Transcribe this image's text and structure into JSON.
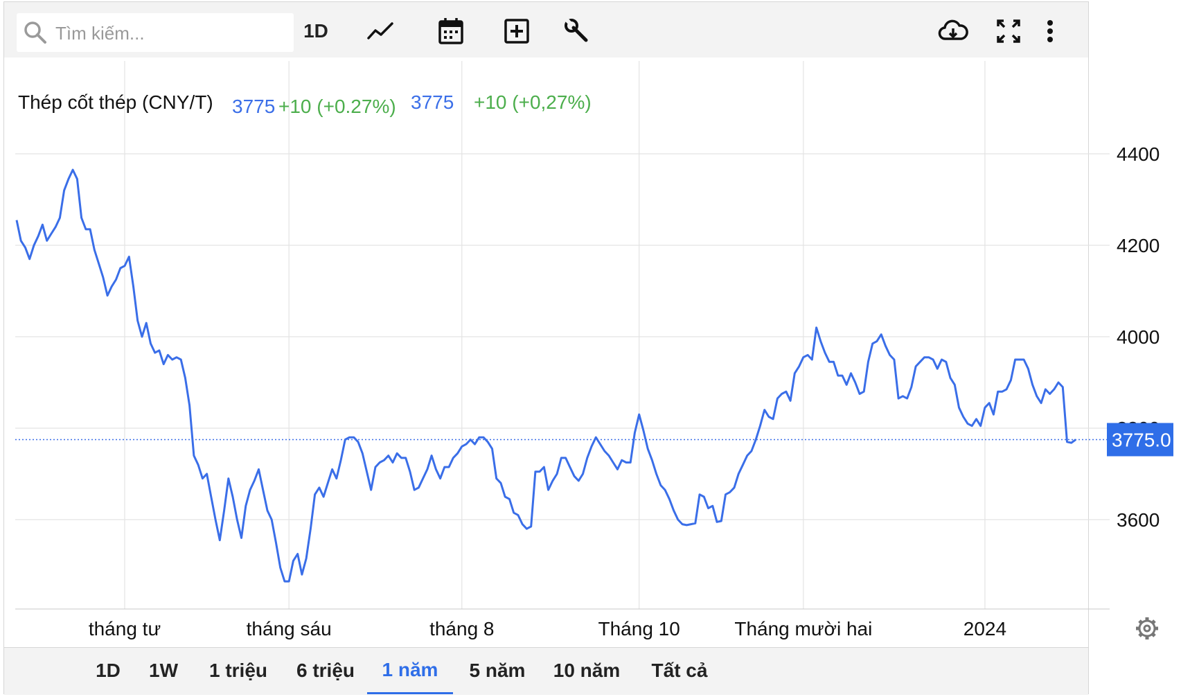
{
  "toolbar": {
    "search_placeholder": "Tìm kiếm...",
    "interval_label": "1D"
  },
  "legend": {
    "title": "Thép cốt thép (CNY/T)",
    "value": "3775",
    "change": "+10 (+0.27%)",
    "value2": "3775",
    "change2": "+10 (+0,27%)"
  },
  "price_tag": "3775.0",
  "ranges": [
    "1D",
    "1W",
    "1 triệu",
    "6 triệu",
    "1 năm",
    "5 năm",
    "10 năm",
    "Tất cả"
  ],
  "active_range": "1 năm",
  "colors": {
    "line": "#3a6ee8",
    "up": "#4cae4c",
    "tag_bg": "#2f6ee8",
    "grid": "#e3e3e3"
  },
  "icons": [
    "search-icon",
    "line-chart-icon",
    "calendar-icon",
    "add-icon",
    "wrench-icon",
    "cloud-download-icon",
    "fullscreen-icon",
    "more-icon",
    "gear-icon"
  ],
  "chart_data": {
    "type": "line",
    "title": "Thép cốt thép (CNY/T)",
    "xlabel": "",
    "ylabel": "",
    "ylim": [
      3400,
      4600
    ],
    "y_ticks": [
      3600,
      3800,
      4000,
      4200,
      4400
    ],
    "x_tick_labels": [
      "tháng tư",
      "tháng sáu",
      "tháng 8",
      "Tháng 10",
      "Tháng mười hai",
      "2024"
    ],
    "x_tick_index": [
      25,
      63,
      103,
      144,
      182,
      224
    ],
    "last_value": 3775,
    "grid": true,
    "series": [
      {
        "values": [
          4255,
          4210,
          4195,
          4170,
          4200,
          4220,
          4245,
          4210,
          4225,
          4240,
          4260,
          4320,
          4345,
          4365,
          4345,
          4260,
          4235,
          4235,
          4190,
          4160,
          4130,
          4090,
          4110,
          4125,
          4150,
          4155,
          4175,
          4110,
          4035,
          4000,
          4030,
          3985,
          3965,
          3970,
          3940,
          3960,
          3950,
          3955,
          3950,
          3910,
          3850,
          3740,
          3720,
          3690,
          3700,
          3650,
          3600,
          3555,
          3620,
          3690,
          3650,
          3600,
          3560,
          3630,
          3665,
          3685,
          3710,
          3665,
          3620,
          3600,
          3550,
          3495,
          3465,
          3465,
          3510,
          3525,
          3480,
          3515,
          3580,
          3655,
          3670,
          3650,
          3680,
          3710,
          3690,
          3730,
          3775,
          3780,
          3780,
          3770,
          3745,
          3705,
          3665,
          3715,
          3725,
          3730,
          3740,
          3725,
          3745,
          3735,
          3735,
          3705,
          3665,
          3670,
          3690,
          3710,
          3740,
          3710,
          3690,
          3715,
          3715,
          3735,
          3745,
          3760,
          3765,
          3775,
          3765,
          3780,
          3780,
          3770,
          3755,
          3690,
          3680,
          3650,
          3645,
          3615,
          3610,
          3590,
          3580,
          3585,
          3705,
          3705,
          3715,
          3665,
          3685,
          3700,
          3735,
          3735,
          3715,
          3695,
          3685,
          3700,
          3735,
          3760,
          3780,
          3765,
          3750,
          3740,
          3725,
          3710,
          3730,
          3725,
          3725,
          3790,
          3830,
          3795,
          3755,
          3730,
          3700,
          3675,
          3665,
          3645,
          3620,
          3600,
          3590,
          3588,
          3590,
          3592,
          3655,
          3650,
          3625,
          3630,
          3595,
          3597,
          3655,
          3660,
          3670,
          3700,
          3720,
          3740,
          3750,
          3775,
          3805,
          3840,
          3825,
          3820,
          3865,
          3875,
          3880,
          3860,
          3920,
          3935,
          3955,
          3960,
          3950,
          4020,
          3990,
          3965,
          3945,
          3945,
          3915,
          3915,
          3895,
          3920,
          3900,
          3875,
          3880,
          3945,
          3985,
          3990,
          4005,
          3980,
          3960,
          3950,
          3865,
          3870,
          3865,
          3890,
          3935,
          3945,
          3955,
          3955,
          3950,
          3930,
          3950,
          3945,
          3910,
          3895,
          3845,
          3825,
          3810,
          3805,
          3820,
          3805,
          3845,
          3855,
          3830,
          3880,
          3880,
          3885,
          3905,
          3950,
          3950,
          3950,
          3930,
          3895,
          3870,
          3855,
          3885,
          3875,
          3885,
          3900,
          3890,
          3770,
          3768,
          3775
        ]
      }
    ]
  }
}
